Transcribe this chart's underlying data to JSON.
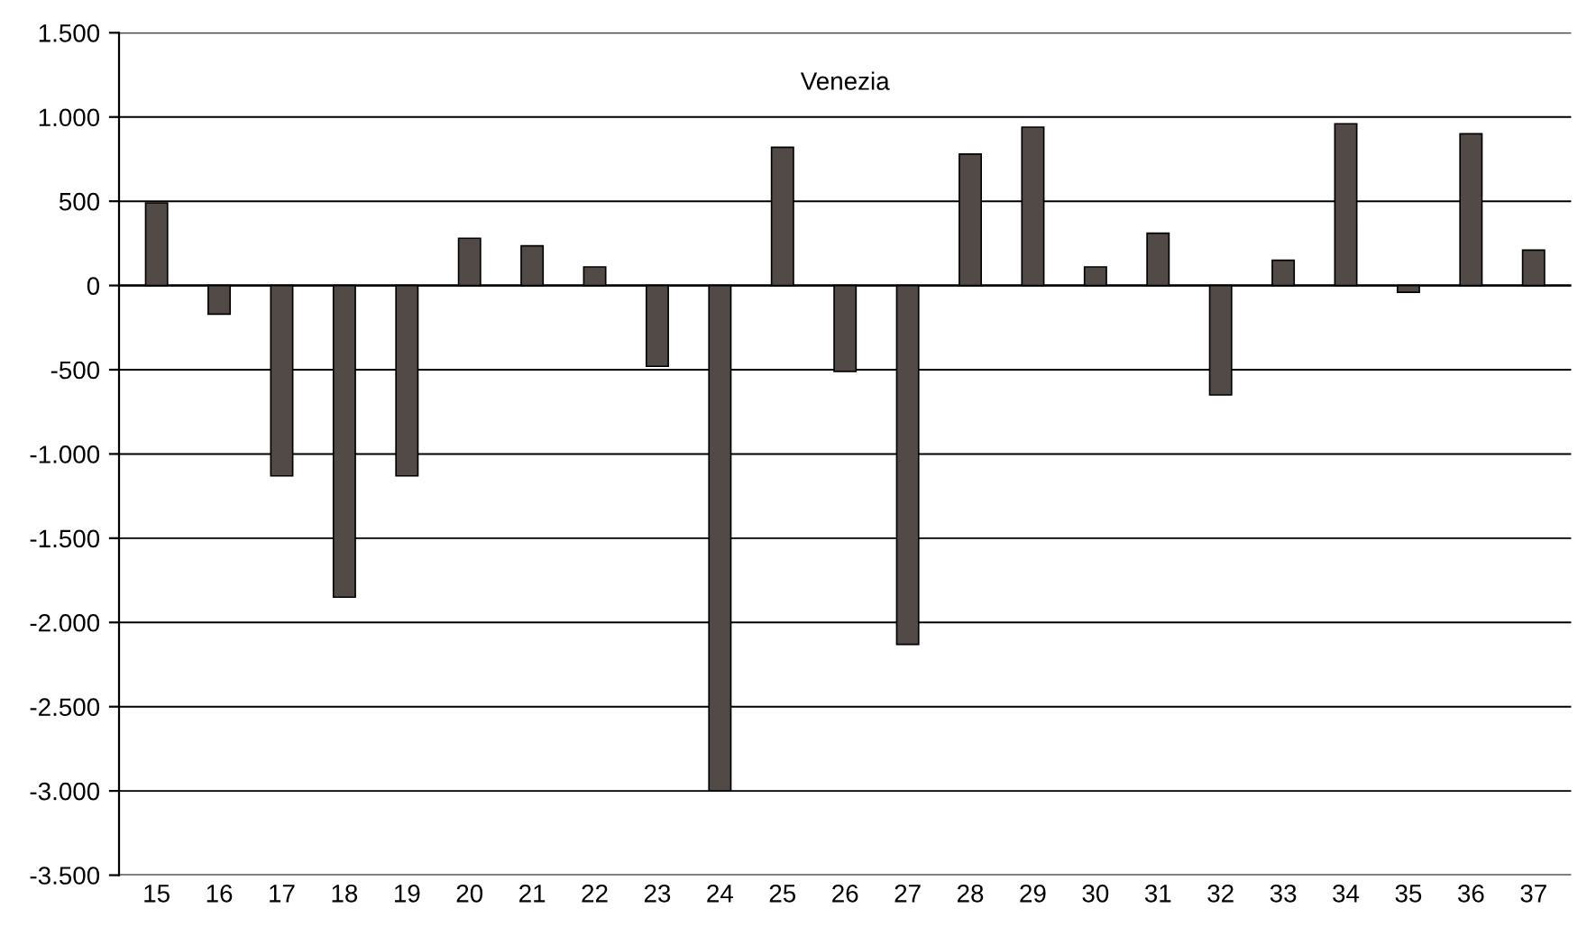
{
  "chart_data": {
    "type": "bar",
    "title": "Venezia",
    "categories": [
      "15",
      "16",
      "17",
      "18",
      "19",
      "20",
      "21",
      "22",
      "23",
      "24",
      "25",
      "26",
      "27",
      "28",
      "29",
      "30",
      "31",
      "32",
      "33",
      "34",
      "35",
      "36",
      "37"
    ],
    "values": [
      490,
      -170,
      -1130,
      -1850,
      -1130,
      280,
      235,
      110,
      -480,
      -3000,
      820,
      -510,
      -2130,
      780,
      940,
      110,
      310,
      -650,
      150,
      960,
      -40,
      900,
      210
    ],
    "color": "#524a47",
    "ylim": [
      -3500,
      1500
    ],
    "yticks": [
      {
        "value": -3500,
        "label": "-3.500"
      },
      {
        "value": -3000,
        "label": "-3.000"
      },
      {
        "value": -2500,
        "label": "-2.500"
      },
      {
        "value": -2000,
        "label": "-2.000"
      },
      {
        "value": -1500,
        "label": "-1.500"
      },
      {
        "value": -1000,
        "label": "-1.000"
      },
      {
        "value": -500,
        "label": "-500"
      },
      {
        "value": 0,
        "label": "0"
      },
      {
        "value": 500,
        "label": "500"
      },
      {
        "value": 1000,
        "label": "1.000"
      },
      {
        "value": 1500,
        "label": "1.500"
      }
    ],
    "grid": "y"
  }
}
